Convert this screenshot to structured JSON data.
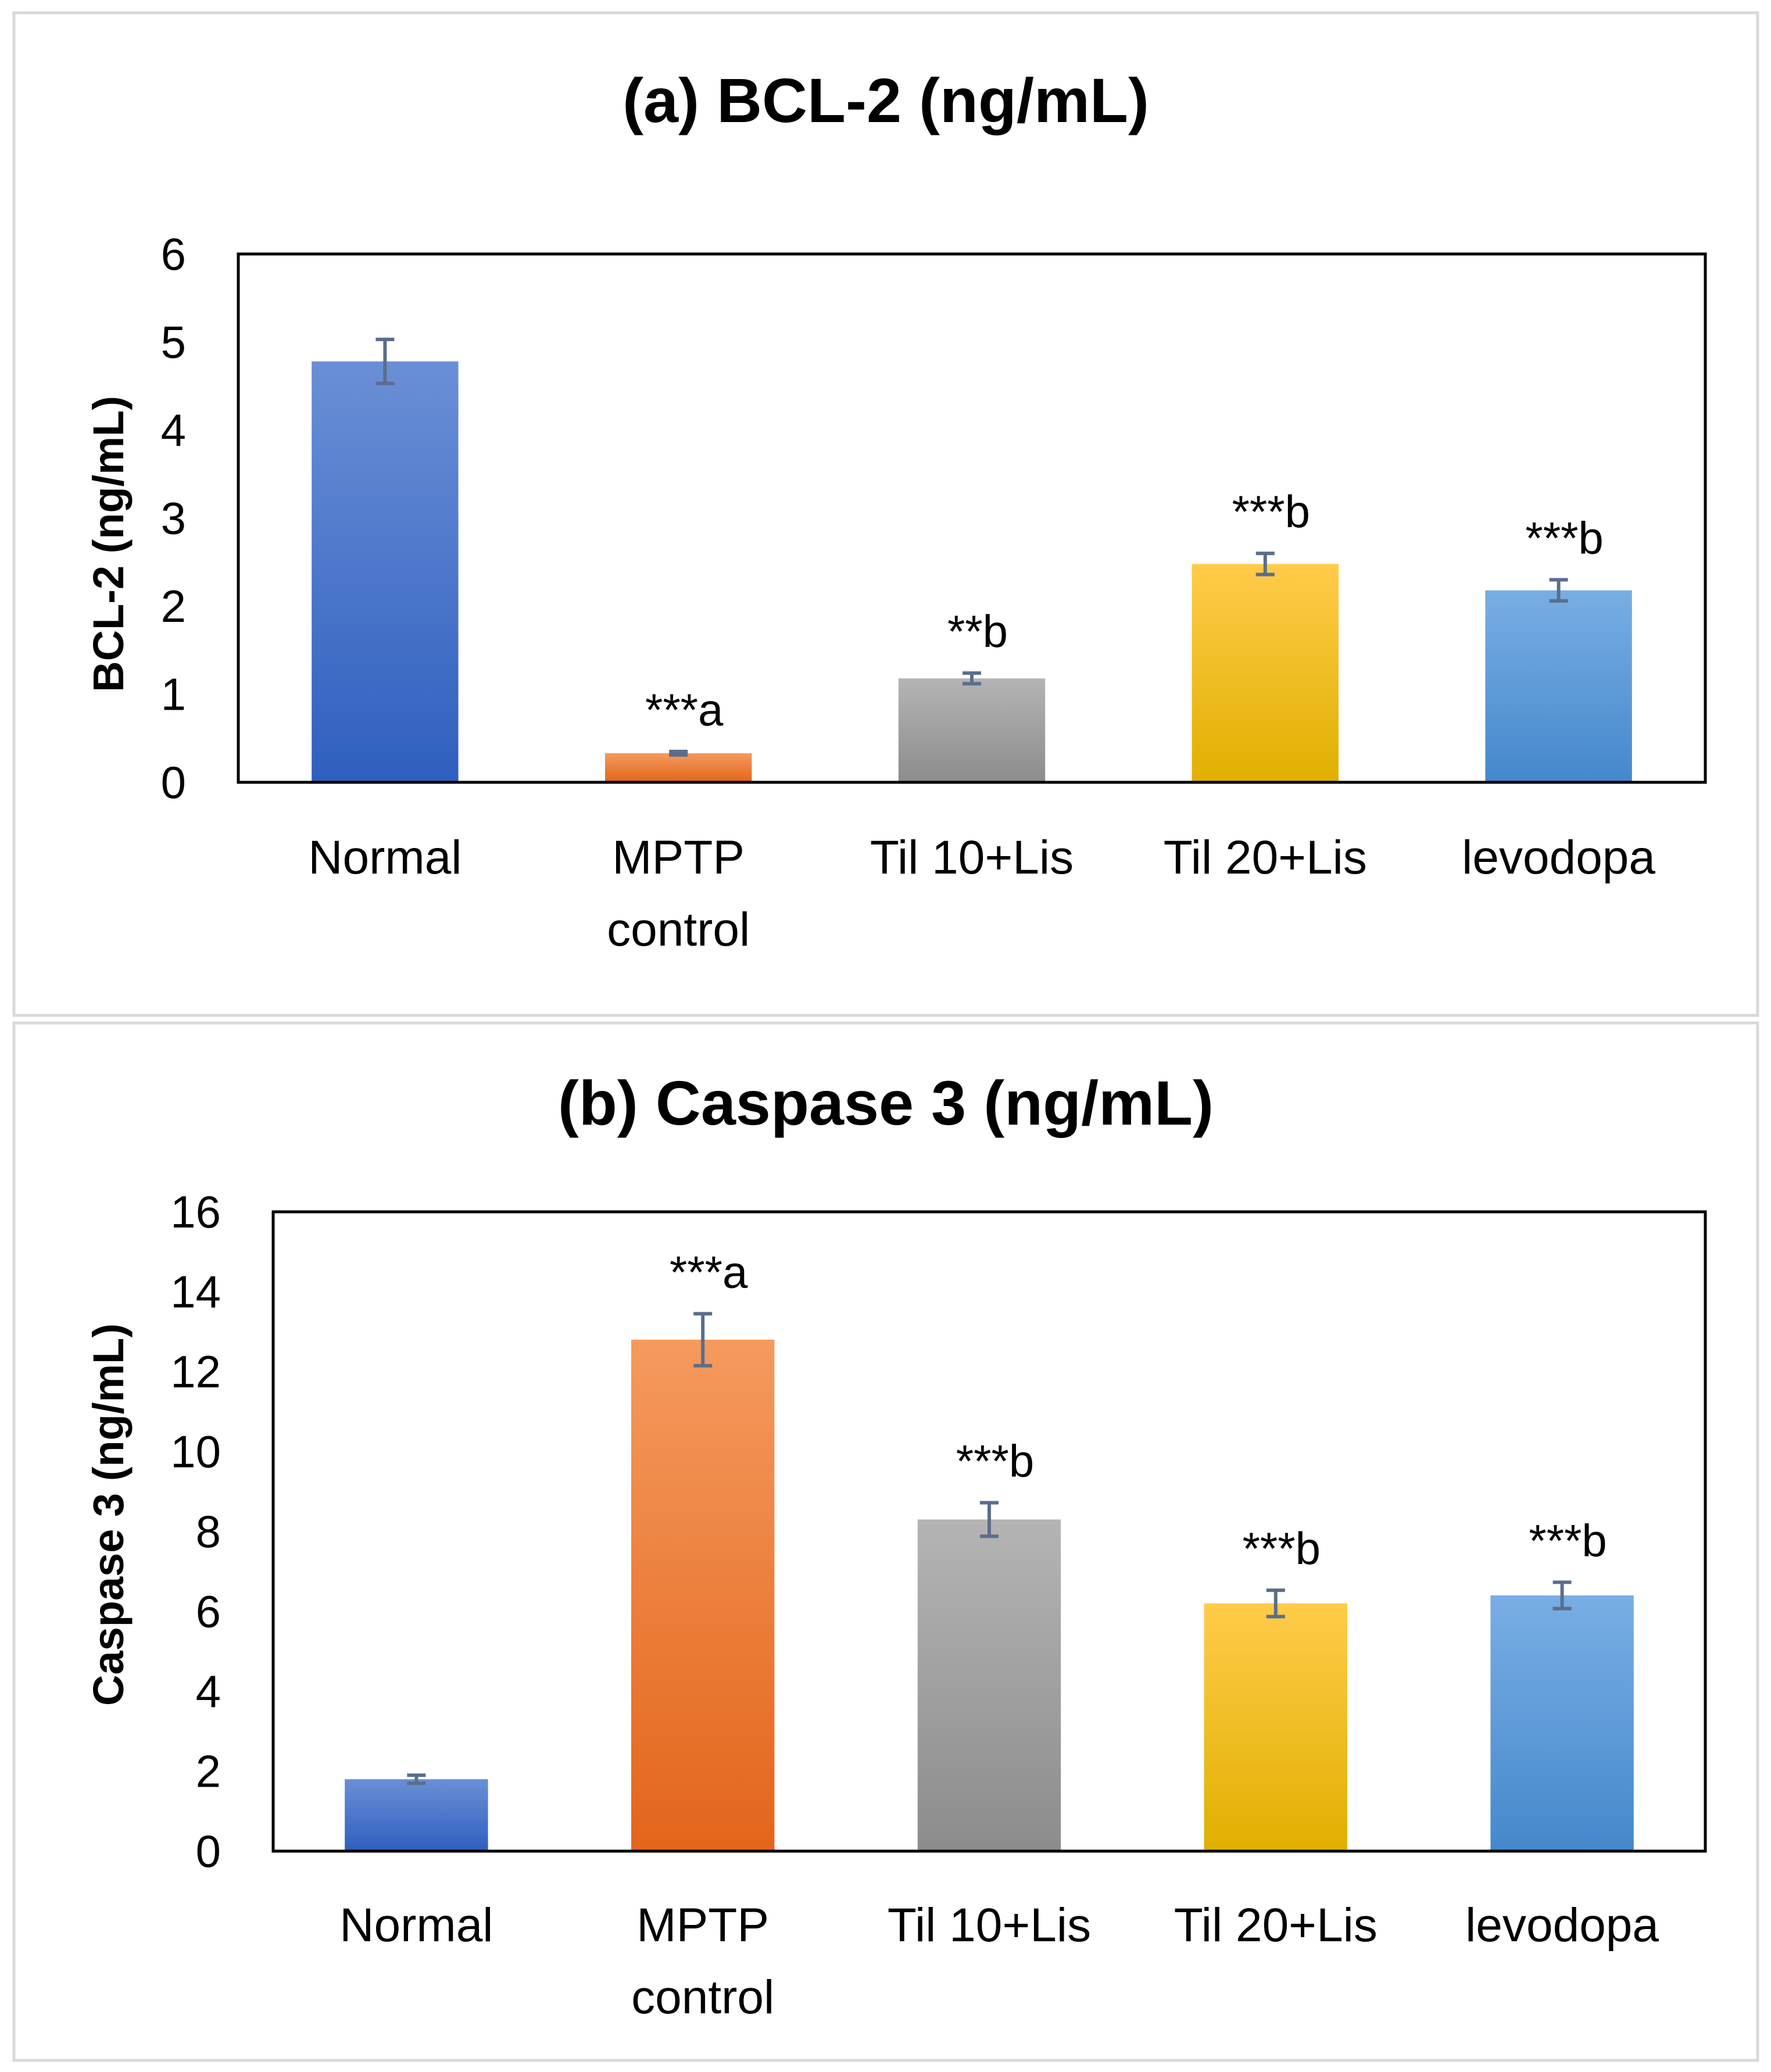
{
  "colors": {
    "panel_border": "#d9d9d9",
    "axis": "#000000",
    "error_bar": "#5a6e8c",
    "bar_colors": [
      [
        "#6a8fd6",
        "#2f5fbf"
      ],
      [
        "#f59a5e",
        "#e3651b"
      ],
      [
        "#b4b4b4",
        "#8c8c8c"
      ],
      [
        "#ffcb4a",
        "#e0b000"
      ],
      [
        "#79aee4",
        "#4488cc"
      ]
    ]
  },
  "chart_data": [
    {
      "type": "bar",
      "title": "(a) BCL-2 (ng/mL)",
      "xlabel": "",
      "ylabel": "BCL-2 (ng/mL)",
      "ylim": [
        0,
        6
      ],
      "yticks": [
        "0",
        "1",
        "2",
        "3",
        "4",
        "5",
        "6"
      ],
      "categories": [
        [
          "Normal"
        ],
        [
          "MPTP",
          "control"
        ],
        [
          "Til 10+Lis"
        ],
        [
          "Til 20+Lis"
        ],
        [
          "levodopa"
        ]
      ],
      "values": [
        4.78,
        0.33,
        1.18,
        2.48,
        2.18
      ],
      "errors": [
        0.25,
        0.02,
        0.06,
        0.12,
        0.12
      ],
      "annotations": [
        "",
        "***a",
        "**b",
        "***b",
        "***b"
      ],
      "grid": false
    },
    {
      "type": "bar",
      "title": "(b) Caspase 3 (ng/mL)",
      "xlabel": "",
      "ylabel": "Caspase 3 (ng/mL)",
      "ylim": [
        0,
        16
      ],
      "yticks": [
        "0",
        "2",
        "4",
        "6",
        "8",
        "10",
        "12",
        "14",
        "16"
      ],
      "categories": [
        [
          "Normal"
        ],
        [
          "MPTP",
          "control"
        ],
        [
          "Til 10+Lis"
        ],
        [
          "Til 20+Lis"
        ],
        [
          "levodopa"
        ]
      ],
      "values": [
        1.8,
        12.8,
        8.3,
        6.2,
        6.4
      ],
      "errors": [
        0.1,
        0.65,
        0.42,
        0.33,
        0.33
      ],
      "annotations": [
        "",
        "***a",
        "***b",
        "***b",
        "***b"
      ],
      "grid": false
    }
  ]
}
